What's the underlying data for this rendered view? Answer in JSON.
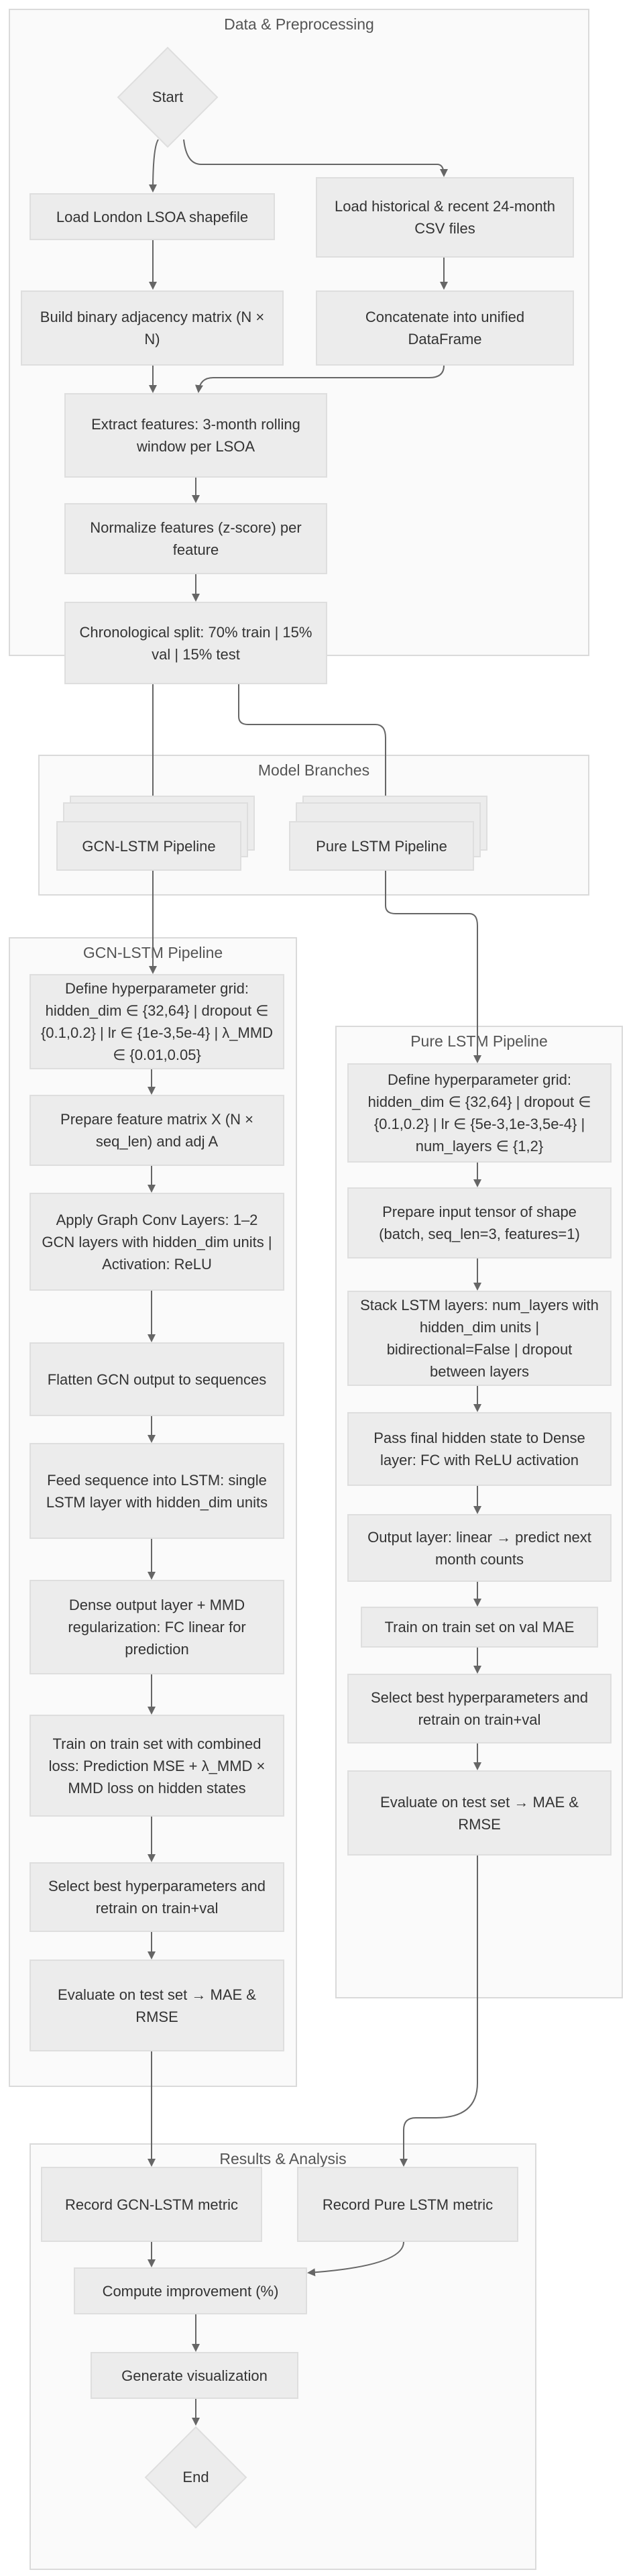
{
  "clusters": {
    "data_preprocessing": "Data & Preprocessing",
    "model_branches": "Model Branches",
    "gcn_lstm_pipeline": "GCN-LSTM Pipeline",
    "pure_lstm_pipeline": "Pure LSTM Pipeline",
    "results_analysis": "Results & Analysis"
  },
  "nodes": {
    "start": "Start",
    "load_shapefile": "Load London LSOA shapefile",
    "load_csv": "Load historical & recent 24-month CSV files",
    "adjacency": "Build binary adjacency matrix (N × N)",
    "concatenate": "Concatenate into unified DataFrame",
    "extract_features": "Extract features: 3-month rolling window per LSOA",
    "normalize": "Normalize features (z-score) per feature",
    "split": "Chronological split: 70% train | 15% val | 15% test",
    "gcn_branch": "GCN-LSTM Pipeline",
    "lstm_branch": "Pure LSTM Pipeline",
    "gcn_hyperparams": "Define hyperparameter grid: hidden_dim ∈ {32,64} | dropout ∈ {0.1,0.2} | lr ∈ {1e-3,5e-4} | λ_MMD ∈ {0.01,0.05}",
    "gcn_prepare": "Prepare feature matrix X (N × seq_len) and adj A",
    "gcn_graphconv": "Apply Graph Conv Layers: 1–2 GCN layers with hidden_dim units | Activation: ReLU",
    "gcn_flatten": "Flatten GCN output to sequences",
    "gcn_lstm": "Feed sequence into LSTM: single LSTM layer with hidden_dim units",
    "gcn_dense": "Dense output layer + MMD regularization: FC linear for prediction",
    "gcn_train": "Train on train set with combined loss: Prediction MSE + λ_MMD × MMD loss on hidden states",
    "gcn_select": "Select best hyperparameters and retrain on train+val",
    "gcn_evaluate": "Evaluate on test set → MAE & RMSE",
    "lstm_hyperparams": "Define hyperparameter grid: hidden_dim ∈ {32,64} | dropout ∈ {0.1,0.2} | lr ∈ {5e-3,1e-3,5e-4} | num_layers ∈ {1,2}",
    "lstm_prepare": "Prepare input tensor of shape (batch, seq_len=3, features=1)",
    "lstm_stack": "Stack LSTM layers: num_layers with hidden_dim units | bidirectional=False | dropout between layers",
    "lstm_dense": "Pass final hidden state to Dense layer: FC with ReLU activation",
    "lstm_output": "Output layer: linear → predict next month counts",
    "lstm_train": "Train on train set on val MAE",
    "lstm_select": "Select best hyperparameters and retrain on train+val",
    "lstm_evaluate": "Evaluate on test set → MAE & RMSE",
    "record_gcn": "Record GCN-LSTM metric",
    "record_lstm": "Record Pure LSTM metric",
    "improvement": "Compute improvement (%)",
    "visualization": "Generate visualization",
    "end": "End"
  },
  "colors": {
    "node_fill": "#ececec",
    "node_border": "#dedede",
    "cluster_fill": "#fafafa",
    "cluster_border": "#dadada",
    "edge": "#666666"
  }
}
